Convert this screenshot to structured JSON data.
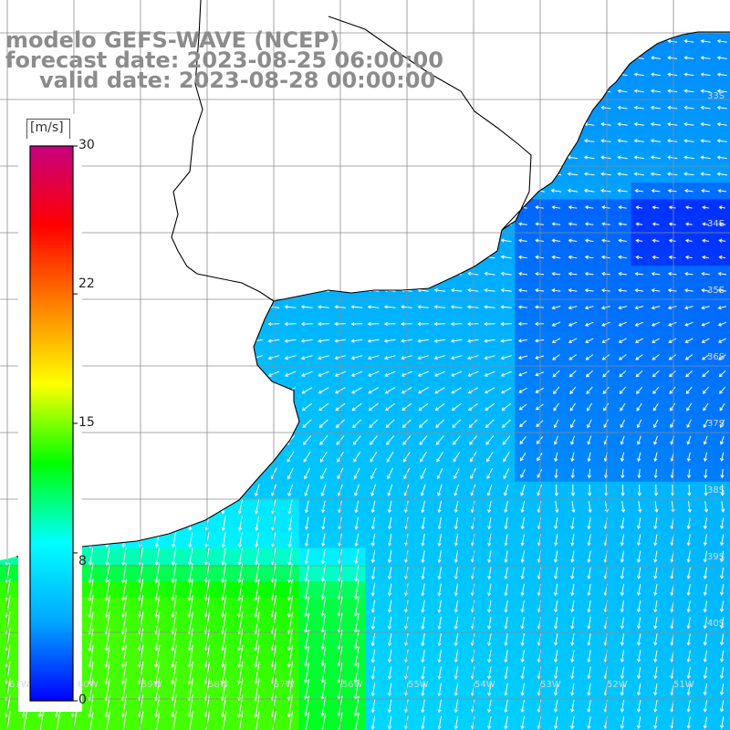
{
  "title": {
    "line1": "modelo GEFS-WAVE (NCEP)",
    "line2": "forecast date: 2023-08-25 06:00:00",
    "line3": "valid date: 2023-08-28 00:00:00"
  },
  "colorbar": {
    "unit": "[m/s]",
    "ticks": [
      "30",
      "22",
      "15",
      "8",
      "0"
    ],
    "tick_values": [
      30,
      22,
      15,
      8,
      0
    ],
    "min": 0,
    "max": 30,
    "colors": [
      "#0000ff",
      "#00a8ff",
      "#00ffff",
      "#00ff00",
      "#ffff00",
      "#ff8000",
      "#ff0000",
      "#c80080"
    ]
  },
  "map": {
    "type": "wind field",
    "lat_labels": [
      "33S",
      "34S",
      "35S",
      "36S",
      "37S",
      "38S",
      "39S",
      "40S"
    ],
    "lon_labels": [
      "61W",
      "60W",
      "59W",
      "58W",
      "57W",
      "56W",
      "55W",
      "54W",
      "53W",
      "52W",
      "51W"
    ],
    "land_color": "#ffffff",
    "grid_color": "#8c8c8c"
  }
}
